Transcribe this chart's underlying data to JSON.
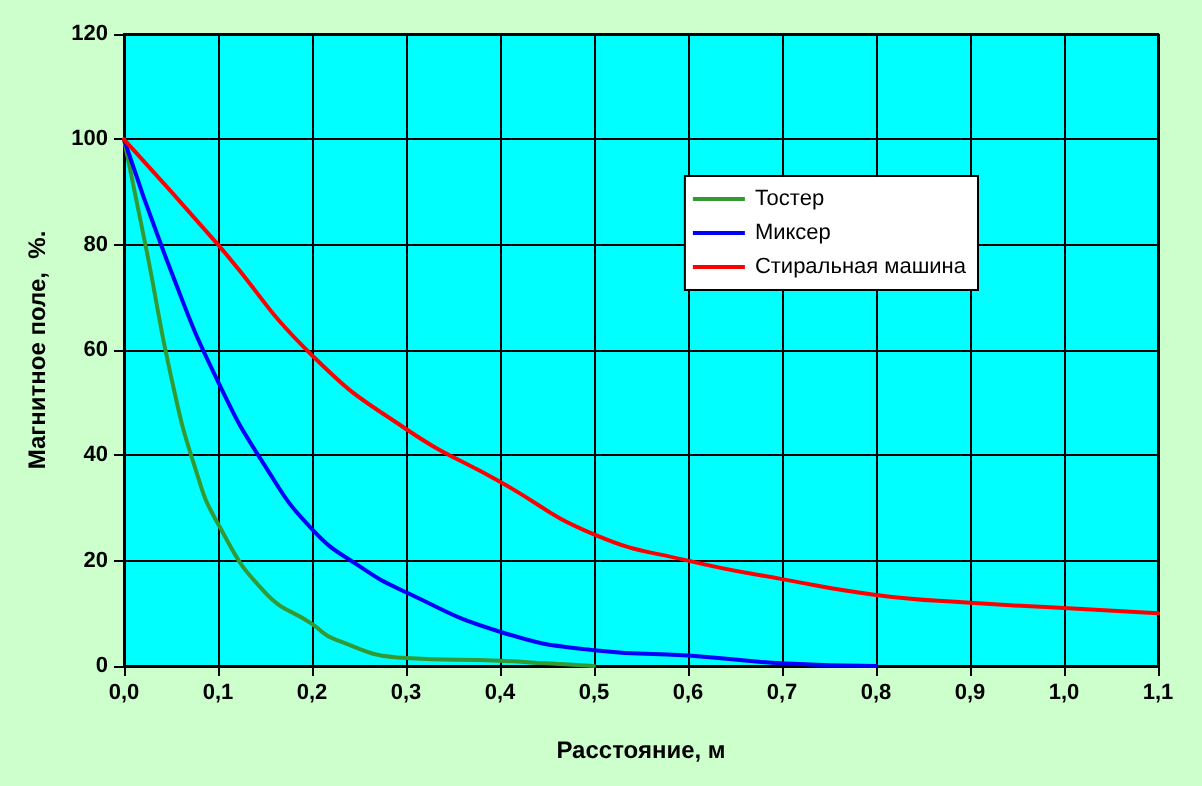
{
  "chart_data": {
    "type": "line",
    "xlabel": "Расстояние, м",
    "ylabel": "Магнитное поле,  %.",
    "xlim": [
      0,
      1.1
    ],
    "xticks": [
      {
        "value": 0,
        "label": "0,0"
      },
      {
        "value": 0.1,
        "label": "0,1"
      },
      {
        "value": 0.2,
        "label": "0,2"
      },
      {
        "value": 0.3,
        "label": "0,3"
      },
      {
        "value": 0.4,
        "label": "0,4"
      },
      {
        "value": 0.5,
        "label": "0,5"
      },
      {
        "value": 0.6,
        "label": "0,6"
      },
      {
        "value": 0.7,
        "label": "0,7"
      },
      {
        "value": 0.8,
        "label": "0,8"
      },
      {
        "value": 0.9,
        "label": "0,9"
      },
      {
        "value": 1,
        "label": "1,0"
      },
      {
        "value": 1.1,
        "label": "1,1"
      }
    ],
    "ylim": [
      0,
      120
    ],
    "yticks": [
      0,
      20,
      40,
      60,
      80,
      100,
      120
    ],
    "grid": true,
    "legend": "top right",
    "marker": "none",
    "line_style": "solid",
    "series": [
      {
        "name": "Тостер",
        "color": "#339933",
        "x": [
          0,
          0.025,
          0.05,
          0.075,
          0.1,
          0.15,
          0.2,
          0.225,
          0.3,
          0.4,
          0.45,
          0.5
        ],
        "values": [
          100,
          78,
          55,
          38,
          27,
          14,
          8,
          5,
          1.5,
          1,
          0.5,
          0
        ]
      },
      {
        "name": "Миксер",
        "color": "#0000ff",
        "x": [
          0,
          0.05,
          0.1,
          0.15,
          0.2,
          0.25,
          0.3,
          0.4,
          0.5,
          0.6,
          0.7,
          0.8
        ],
        "values": [
          100,
          75,
          54,
          38,
          26,
          19,
          14,
          6.5,
          3,
          2,
          0.5,
          0
        ]
      },
      {
        "name": "Стиральная машина",
        "color": "#ff0000",
        "x": [
          0,
          0.1,
          0.2,
          0.3,
          0.4,
          0.5,
          0.6,
          0.7,
          0.8,
          0.9,
          1,
          1.1
        ],
        "values": [
          100,
          80,
          59,
          45,
          35,
          25,
          20,
          16.5,
          13.5,
          12,
          11,
          10
        ]
      }
    ]
  }
}
